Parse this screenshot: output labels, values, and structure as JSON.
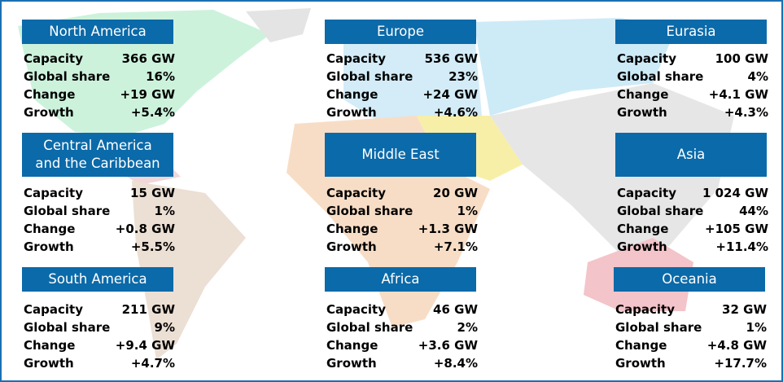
{
  "regions": [
    {
      "name": "North America",
      "rows": [
        {
          "label": "Capacity",
          "value": "366 GW"
        },
        {
          "label": "Global share",
          "value": "16%"
        },
        {
          "label": "Change",
          "value": "+19 GW"
        },
        {
          "label": "Growth",
          "value": "+5.4%"
        }
      ]
    },
    {
      "name": "Europe",
      "rows": [
        {
          "label": "Capacity",
          "value": "536 GW"
        },
        {
          "label": "Global share",
          "value": "23%"
        },
        {
          "label": "Change",
          "value": "+24 GW"
        },
        {
          "label": "Growth",
          "value": "+4.6%"
        }
      ]
    },
    {
      "name": "Eurasia",
      "rows": [
        {
          "label": "Capacity",
          "value": "100 GW"
        },
        {
          "label": "Global share",
          "value": "4%"
        },
        {
          "label": "Change",
          "value": "+4.1 GW"
        },
        {
          "label": "Growth",
          "value": "+4.3%"
        }
      ]
    },
    {
      "name": "Central America\nand the Caribbean",
      "rows": [
        {
          "label": "Capacity",
          "value": "15 GW"
        },
        {
          "label": "Global share",
          "value": "1%"
        },
        {
          "label": "Change",
          "value": "+0.8 GW"
        },
        {
          "label": "Growth",
          "value": "+5.5%"
        }
      ]
    },
    {
      "name": "Middle East",
      "rows": [
        {
          "label": "Capacity",
          "value": "20 GW"
        },
        {
          "label": "Global share",
          "value": "1%"
        },
        {
          "label": "Change",
          "value": "+1.3 GW"
        },
        {
          "label": "Growth",
          "value": "+7.1%"
        }
      ]
    },
    {
      "name": "Asia",
      "rows": [
        {
          "label": "Capacity",
          "value": "1 024 GW"
        },
        {
          "label": "Global share",
          "value": "44%"
        },
        {
          "label": "Change",
          "value": "+105 GW"
        },
        {
          "label": "Growth",
          "value": "+11.4%"
        }
      ]
    },
    {
      "name": "South America",
      "rows": [
        {
          "label": "Capacity",
          "value": "211 GW"
        },
        {
          "label": "Global share",
          "value": "9%"
        },
        {
          "label": "Change",
          "value": "+9.4 GW"
        },
        {
          "label": "Growth",
          "value": "+4.7%"
        }
      ]
    },
    {
      "name": "Africa",
      "rows": [
        {
          "label": "Capacity",
          "value": "46 GW"
        },
        {
          "label": "Global share",
          "value": "2%"
        },
        {
          "label": "Change",
          "value": "+3.6 GW"
        },
        {
          "label": "Growth",
          "value": "+8.4%"
        }
      ]
    },
    {
      "name": "Oceania",
      "rows": [
        {
          "label": "Capacity",
          "value": "32 GW"
        },
        {
          "label": "Global share",
          "value": "1%"
        },
        {
          "label": "Change",
          "value": "+4.8 GW"
        },
        {
          "label": "Growth",
          "value": "+17.7%"
        }
      ]
    }
  ]
}
